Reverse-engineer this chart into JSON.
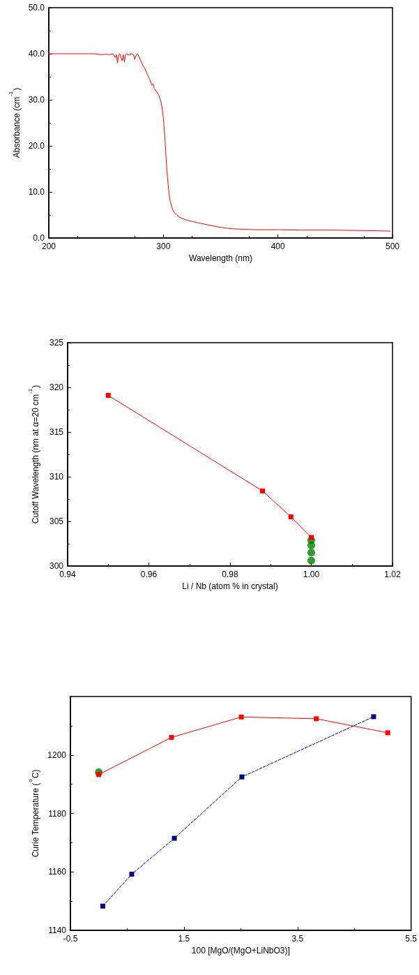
{
  "chart_data": [
    {
      "type": "line",
      "xlabel": "Wavelength (nm)",
      "ylabel": "Absorbance (cm$^{-1}$)",
      "color": "#ff0000",
      "marker": "none",
      "line_style": "solid",
      "x": [
        200,
        210,
        220,
        230,
        240,
        245,
        250,
        253,
        256,
        258,
        259,
        260,
        261,
        262,
        264,
        265,
        266,
        267,
        268,
        270,
        272,
        274,
        275,
        276,
        277,
        278,
        280,
        282,
        284,
        286,
        288,
        290,
        291,
        292,
        294,
        296,
        298,
        299,
        300,
        301,
        302,
        303,
        304,
        305,
        306,
        308,
        310,
        312,
        315,
        320,
        330,
        340,
        350,
        360,
        370,
        380,
        400,
        420,
        450,
        480,
        498
      ],
      "values": [
        40,
        40,
        40,
        40,
        40,
        39.8,
        39.9,
        39.8,
        40,
        39.2,
        39.8,
        38,
        39.8,
        40,
        38.5,
        39.8,
        38.2,
        39.8,
        40,
        39.7,
        40,
        39.8,
        38.8,
        39.5,
        40,
        39.8,
        38.6,
        37.5,
        36.8,
        35.5,
        34.5,
        33.2,
        33.5,
        32.5,
        31.8,
        31,
        29.5,
        28,
        26,
        23,
        19,
        15,
        12,
        9.5,
        8,
        6.2,
        5.4,
        4.9,
        4.4,
        3.9,
        3.3,
        2.8,
        2.3,
        2.0,
        1.9,
        1.8,
        1.8,
        1.7,
        1.7,
        1.6,
        1.5
      ],
      "xlim": [
        200,
        500
      ],
      "xticks": [
        200,
        300,
        400,
        500
      ],
      "ylim": [
        0,
        50
      ],
      "yticks": [
        {
          "value": 0,
          "label": "0.0"
        },
        {
          "value": 10,
          "label": "10.0"
        },
        {
          "value": 20,
          "label": "20.0"
        },
        {
          "value": 30,
          "label": "30.0"
        },
        {
          "value": 40,
          "label": "40.0"
        },
        {
          "value": 50,
          "label": "50.0"
        }
      ]
    },
    {
      "type": "line",
      "xlabel": "Li / Nb (atom % in crystal)",
      "ylabel": "Cutoff Wavelength (nm at α=20 cm$^{-1}$)",
      "series": [
        {
          "color": "#ff0000",
          "marker": "square",
          "line_style": "solid",
          "x": [
            0.95,
            0.988,
            0.995,
            1.0
          ],
          "values": [
            319.1,
            308.4,
            305.5,
            303.2
          ]
        },
        {
          "type": "scatter",
          "color": "#007f00",
          "marker": "circle",
          "x": [
            1.0,
            1.0,
            1.0,
            1.0
          ],
          "values": [
            302.9,
            302.3,
            301.5,
            300.6
          ]
        }
      ],
      "xlim": [
        0.94,
        1.02
      ],
      "xticks": [
        {
          "value": 0.94,
          "label": "0.94"
        },
        {
          "value": 0.96,
          "label": "0.96"
        },
        {
          "value": 0.98,
          "label": "0.98"
        },
        {
          "value": 1.0,
          "label": "1.00"
        },
        {
          "value": 1.02,
          "label": "1.02"
        }
      ],
      "ylim": [
        300,
        325
      ],
      "yticks": [
        300,
        305,
        310,
        315,
        320,
        325
      ]
    },
    {
      "type": "line",
      "xlabel": "100 [MgO/(MgO+LiNbO3)]",
      "ylabel": "Curie Temperature ($^{o}$C)",
      "series": [
        {
          "color": "#ff0000",
          "marker": "square",
          "line_style": "solid",
          "x": [
            0.0,
            1.28,
            2.51,
            3.83,
            5.09
          ],
          "values": [
            1193.3,
            1206.0,
            1213.0,
            1212.4,
            1207.6
          ]
        },
        {
          "color": "#000080",
          "marker": "square",
          "line_style": "dashed",
          "x": [
            0.07,
            0.58,
            1.33,
            2.52,
            4.84
          ],
          "values": [
            1148.3,
            1159.2,
            1171.5,
            1192.5,
            1213.1
          ]
        },
        {
          "type": "scatter",
          "color": "#007f00",
          "marker": "circle",
          "x": [
            0.0
          ],
          "values": [
            1194.1
          ]
        }
      ],
      "xlim": [
        -0.5,
        5.5
      ],
      "xticks": [
        -0.5,
        1.5,
        3.5,
        5.5
      ],
      "ylim": [
        1140,
        1220
      ],
      "yticks": [
        1140,
        1160,
        1180,
        1200
      ]
    }
  ]
}
